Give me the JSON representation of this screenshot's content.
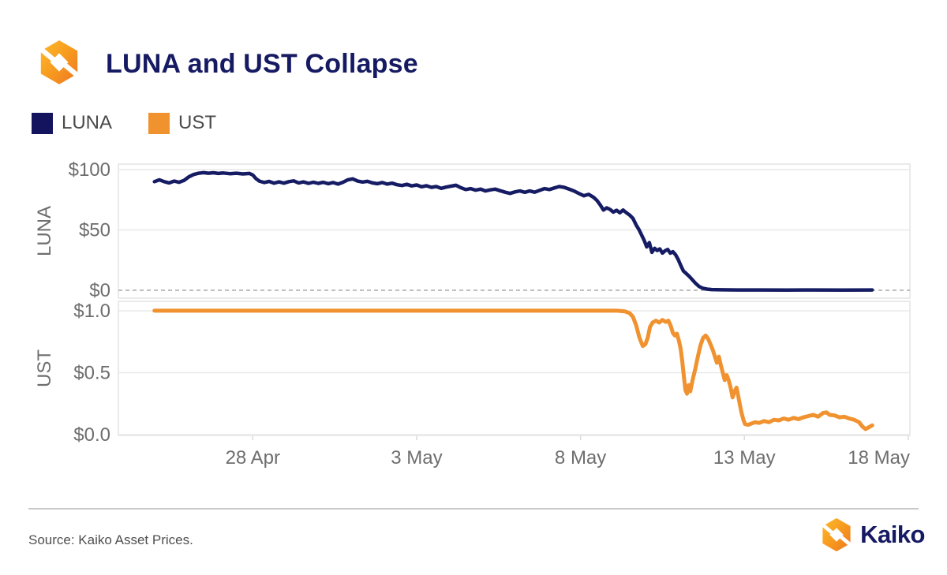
{
  "header": {
    "title": "LUNA and UST Collapse"
  },
  "legend": {
    "items": [
      {
        "label": "LUNA",
        "color": "#14145e"
      },
      {
        "label": "UST",
        "color": "#f0922d"
      }
    ]
  },
  "footer": {
    "source": "Source: Kaiko Asset Prices.",
    "brand": "Kaiko"
  },
  "colors": {
    "title_navy": "#151a62",
    "luna_line": "#161c63",
    "ust_line": "#f0922f",
    "axis_text": "#6e6e6e",
    "gridline": "#e9e9e9",
    "zero_dash": "#ababab"
  },
  "chart_data": {
    "type": "line",
    "title": "LUNA and UST Collapse",
    "x_axis": {
      "unit": "date",
      "day0_date": "25 Apr",
      "domain_days": [
        -1.1,
        23.05
      ],
      "tick_days": [
        3,
        8,
        13,
        18,
        23
      ],
      "tick_labels": [
        "28 Apr",
        "3 May",
        "8 May",
        "13 May",
        "18 May"
      ]
    },
    "panels": [
      {
        "name": "LUNA",
        "ylabel": "LUNA",
        "ytick_labels": [
          "$100",
          "$50",
          "$0"
        ],
        "ytick_values": [
          100,
          50,
          0
        ],
        "ylim": [
          -6.5,
          104.6
        ],
        "zero_dashed": true,
        "color": "#161c63",
        "grid": true,
        "legend_position": "top-left",
        "series": {
          "name": "LUNA price (USD)",
          "points": [
            [
              0,
              90
            ],
            [
              0.15,
              91.5
            ],
            [
              0.3,
              90
            ],
            [
              0.45,
              89
            ],
            [
              0.6,
              90.5
            ],
            [
              0.75,
              89.5
            ],
            [
              0.9,
              91
            ],
            [
              1.05,
              94
            ],
            [
              1.2,
              96
            ],
            [
              1.35,
              97
            ],
            [
              1.5,
              97.5
            ],
            [
              1.65,
              97
            ],
            [
              1.8,
              97.4
            ],
            [
              1.95,
              96.8
            ],
            [
              2.1,
              97.2
            ],
            [
              2.3,
              96.6
            ],
            [
              2.5,
              97
            ],
            [
              2.7,
              96.4
            ],
            [
              2.9,
              96.8
            ],
            [
              3,
              95.5
            ],
            [
              3.1,
              92.5
            ],
            [
              3.2,
              90.5
            ],
            [
              3.35,
              89.3
            ],
            [
              3.5,
              90.2
            ],
            [
              3.65,
              88.8
            ],
            [
              3.8,
              89.8
            ],
            [
              3.95,
              88.8
            ],
            [
              4.1,
              90
            ],
            [
              4.25,
              90.7
            ],
            [
              4.4,
              89
            ],
            [
              4.55,
              89.8
            ],
            [
              4.7,
              88.6
            ],
            [
              4.85,
              89.6
            ],
            [
              5,
              88.6
            ],
            [
              5.15,
              89.5
            ],
            [
              5.3,
              88.3
            ],
            [
              5.45,
              89.3
            ],
            [
              5.6,
              88
            ],
            [
              5.75,
              89.5
            ],
            [
              5.9,
              91.5
            ],
            [
              6.05,
              92.3
            ],
            [
              6.2,
              90.5
            ],
            [
              6.35,
              89.7
            ],
            [
              6.5,
              90.3
            ],
            [
              6.65,
              89
            ],
            [
              6.8,
              88.3
            ],
            [
              6.95,
              89.3
            ],
            [
              7.1,
              88
            ],
            [
              7.25,
              88.8
            ],
            [
              7.4,
              87.5
            ],
            [
              7.55,
              86.8
            ],
            [
              7.7,
              87.8
            ],
            [
              7.85,
              86.5
            ],
            [
              8,
              87.3
            ],
            [
              8.15,
              85.8
            ],
            [
              8.3,
              86.6
            ],
            [
              8.45,
              85.3
            ],
            [
              8.6,
              86
            ],
            [
              8.75,
              84.5
            ],
            [
              8.9,
              85.5
            ],
            [
              9.05,
              86.3
            ],
            [
              9.2,
              87
            ],
            [
              9.35,
              85
            ],
            [
              9.5,
              83.5
            ],
            [
              9.65,
              84.3
            ],
            [
              9.8,
              83
            ],
            [
              9.95,
              83.8
            ],
            [
              10.1,
              82.3
            ],
            [
              10.25,
              83.2
            ],
            [
              10.4,
              83.8
            ],
            [
              10.55,
              82.5
            ],
            [
              10.7,
              81.3
            ],
            [
              10.85,
              80.3
            ],
            [
              11,
              81.5
            ],
            [
              11.15,
              82.3
            ],
            [
              11.3,
              81.2
            ],
            [
              11.45,
              82.3
            ],
            [
              11.6,
              81.3
            ],
            [
              11.75,
              82.8
            ],
            [
              11.9,
              84.3
            ],
            [
              12.05,
              83.5
            ],
            [
              12.2,
              84.8
            ],
            [
              12.35,
              86
            ],
            [
              12.5,
              85.3
            ],
            [
              12.65,
              83.8
            ],
            [
              12.8,
              82.3
            ],
            [
              12.95,
              80.3
            ],
            [
              13.1,
              78.3
            ],
            [
              13.25,
              79.5
            ],
            [
              13.4,
              77
            ],
            [
              13.5,
              74.5
            ],
            [
              13.6,
              70.8
            ],
            [
              13.7,
              66.5
            ],
            [
              13.8,
              68.3
            ],
            [
              13.9,
              67
            ],
            [
              14,
              64.8
            ],
            [
              14.1,
              66.3
            ],
            [
              14.2,
              64.3
            ],
            [
              14.3,
              66.5
            ],
            [
              14.4,
              64.3
            ],
            [
              14.5,
              62.3
            ],
            [
              14.6,
              59.5
            ],
            [
              14.7,
              54
            ],
            [
              14.78,
              50.5
            ],
            [
              14.86,
              46
            ],
            [
              14.94,
              41.5
            ],
            [
              15.02,
              36
            ],
            [
              15.1,
              39.5
            ],
            [
              15.18,
              31.5
            ],
            [
              15.26,
              34.8
            ],
            [
              15.34,
              33
            ],
            [
              15.42,
              34.3
            ],
            [
              15.5,
              30.8
            ],
            [
              15.58,
              32.8
            ],
            [
              15.66,
              33.8
            ],
            [
              15.74,
              30.8
            ],
            [
              15.82,
              32
            ],
            [
              15.9,
              29.5
            ],
            [
              15.98,
              25.5
            ],
            [
              16.06,
              20.5
            ],
            [
              16.14,
              16
            ],
            [
              16.22,
              14
            ],
            [
              16.32,
              11.5
            ],
            [
              16.42,
              8.5
            ],
            [
              16.52,
              5.5
            ],
            [
              16.62,
              3.2
            ],
            [
              16.72,
              1.8
            ],
            [
              16.85,
              1
            ],
            [
              17,
              0.6
            ],
            [
              17.3,
              0.4
            ],
            [
              17.8,
              0.3
            ],
            [
              18.5,
              0.3
            ],
            [
              19.3,
              0.25
            ],
            [
              20.1,
              0.3
            ],
            [
              21,
              0.25
            ],
            [
              21.9,
              0.3
            ]
          ]
        }
      },
      {
        "name": "UST",
        "ylabel": "UST",
        "ytick_labels": [
          "$1.0",
          "$0.5",
          "$0.0"
        ],
        "ytick_values": [
          1,
          0.5,
          0
        ],
        "ylim": [
          -0.006,
          1.076
        ],
        "zero_dashed": false,
        "color": "#f0922f",
        "grid": true,
        "series": {
          "name": "UST price (USD)",
          "points": [
            [
              0,
              1
            ],
            [
              1,
              1
            ],
            [
              2,
              1
            ],
            [
              3,
              1
            ],
            [
              4,
              1
            ],
            [
              5,
              1
            ],
            [
              6,
              1
            ],
            [
              7,
              1
            ],
            [
              8,
              1
            ],
            [
              9,
              1
            ],
            [
              10,
              1
            ],
            [
              11,
              1
            ],
            [
              12,
              1
            ],
            [
              13,
              1
            ],
            [
              13.6,
              1
            ],
            [
              14.1,
              1
            ],
            [
              14.35,
              0.995
            ],
            [
              14.5,
              0.98
            ],
            [
              14.6,
              0.95
            ],
            [
              14.7,
              0.88
            ],
            [
              14.8,
              0.78
            ],
            [
              14.9,
              0.715
            ],
            [
              14.98,
              0.73
            ],
            [
              15.05,
              0.78
            ],
            [
              15.12,
              0.87
            ],
            [
              15.2,
              0.905
            ],
            [
              15.3,
              0.92
            ],
            [
              15.4,
              0.905
            ],
            [
              15.5,
              0.925
            ],
            [
              15.6,
              0.91
            ],
            [
              15.68,
              0.92
            ],
            [
              15.75,
              0.88
            ],
            [
              15.82,
              0.82
            ],
            [
              15.88,
              0.8
            ],
            [
              15.94,
              0.815
            ],
            [
              16,
              0.76
            ],
            [
              16.05,
              0.7
            ],
            [
              16.1,
              0.6
            ],
            [
              16.15,
              0.48
            ],
            [
              16.2,
              0.36
            ],
            [
              16.25,
              0.33
            ],
            [
              16.3,
              0.4
            ],
            [
              16.35,
              0.35
            ],
            [
              16.42,
              0.44
            ],
            [
              16.5,
              0.53
            ],
            [
              16.58,
              0.63
            ],
            [
              16.66,
              0.72
            ],
            [
              16.74,
              0.78
            ],
            [
              16.82,
              0.8
            ],
            [
              16.9,
              0.77
            ],
            [
              16.98,
              0.72
            ],
            [
              17.04,
              0.68
            ],
            [
              17.1,
              0.63
            ],
            [
              17.16,
              0.58
            ],
            [
              17.22,
              0.63
            ],
            [
              17.28,
              0.56
            ],
            [
              17.34,
              0.5
            ],
            [
              17.4,
              0.44
            ],
            [
              17.46,
              0.48
            ],
            [
              17.52,
              0.44
            ],
            [
              17.58,
              0.38
            ],
            [
              17.64,
              0.3
            ],
            [
              17.7,
              0.35
            ],
            [
              17.76,
              0.38
            ],
            [
              17.82,
              0.3
            ],
            [
              17.87,
              0.23
            ],
            [
              17.92,
              0.17
            ],
            [
              17.97,
              0.12
            ],
            [
              18.02,
              0.085
            ],
            [
              18.12,
              0.08
            ],
            [
              18.22,
              0.09
            ],
            [
              18.32,
              0.1
            ],
            [
              18.45,
              0.095
            ],
            [
              18.6,
              0.11
            ],
            [
              18.75,
              0.1
            ],
            [
              18.9,
              0.12
            ],
            [
              19.05,
              0.115
            ],
            [
              19.2,
              0.13
            ],
            [
              19.35,
              0.12
            ],
            [
              19.5,
              0.135
            ],
            [
              19.65,
              0.125
            ],
            [
              19.8,
              0.14
            ],
            [
              19.95,
              0.15
            ],
            [
              20.1,
              0.16
            ],
            [
              20.25,
              0.145
            ],
            [
              20.4,
              0.175
            ],
            [
              20.5,
              0.18
            ],
            [
              20.6,
              0.16
            ],
            [
              20.75,
              0.155
            ],
            [
              20.9,
              0.14
            ],
            [
              21.05,
              0.145
            ],
            [
              21.2,
              0.13
            ],
            [
              21.35,
              0.12
            ],
            [
              21.5,
              0.1
            ],
            [
              21.6,
              0.065
            ],
            [
              21.7,
              0.045
            ],
            [
              21.8,
              0.06
            ],
            [
              21.9,
              0.075
            ]
          ]
        }
      }
    ]
  }
}
